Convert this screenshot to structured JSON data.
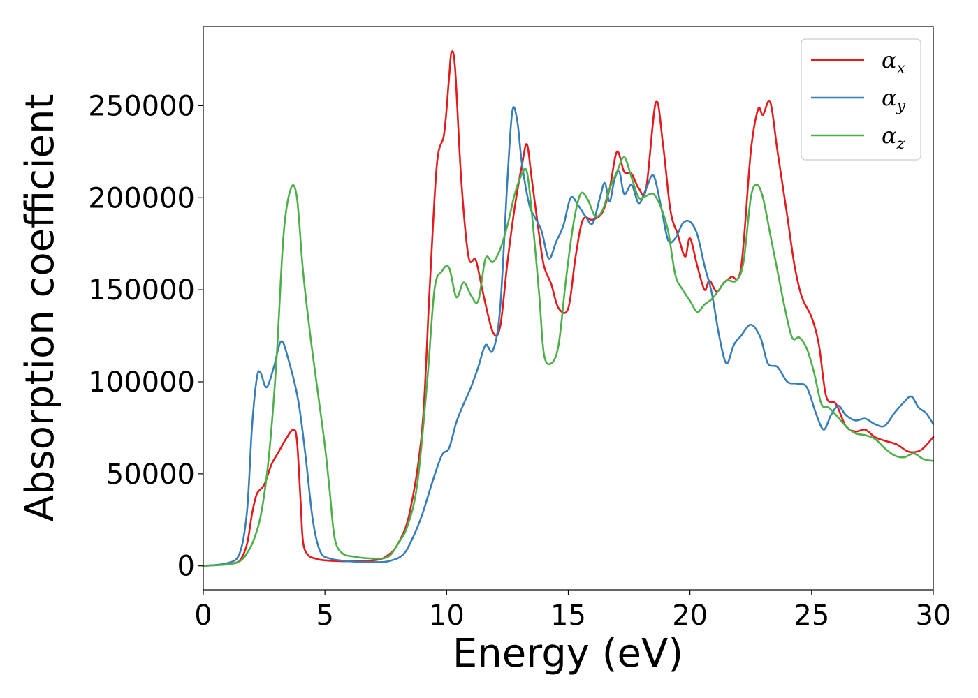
{
  "chart_data": {
    "type": "line",
    "title": "",
    "xlabel": "Energy (eV)",
    "ylabel": "Absorption coefficient",
    "xlim": [
      0,
      30
    ],
    "ylim": [
      -13000,
      293000
    ],
    "xticks": [
      0,
      5,
      10,
      15,
      20,
      25,
      30
    ],
    "xtick_labels": [
      "0",
      "5",
      "10",
      "15",
      "20",
      "25",
      "30"
    ],
    "yticks": [
      0,
      50000,
      100000,
      150000,
      200000,
      250000
    ],
    "ytick_labels": [
      "0",
      "50000",
      "100000",
      "150000",
      "200000",
      "250000"
    ],
    "grid": false,
    "legend_position": "top-right",
    "series": [
      {
        "name": "αx",
        "symbol": "α",
        "subscript": "x",
        "color": "#e41a1c",
        "points": [
          [
            0,
            0
          ],
          [
            1,
            1000
          ],
          [
            1.5,
            3000
          ],
          [
            1.8,
            12000
          ],
          [
            2.0,
            28000
          ],
          [
            2.2,
            39000
          ],
          [
            2.5,
            44000
          ],
          [
            2.8,
            55000
          ],
          [
            3.1,
            62000
          ],
          [
            3.4,
            69000
          ],
          [
            3.7,
            74000
          ],
          [
            3.85,
            68000
          ],
          [
            4.0,
            35000
          ],
          [
            4.1,
            13000
          ],
          [
            4.3,
            6000
          ],
          [
            4.6,
            4000
          ],
          [
            5,
            3000
          ],
          [
            6,
            2500
          ],
          [
            7,
            3000
          ],
          [
            7.5,
            5000
          ],
          [
            8,
            12000
          ],
          [
            8.5,
            30000
          ],
          [
            9,
            75000
          ],
          [
            9.3,
            150000
          ],
          [
            9.6,
            218000
          ],
          [
            9.9,
            235000
          ],
          [
            10.1,
            265000
          ],
          [
            10.2,
            279000
          ],
          [
            10.35,
            270000
          ],
          [
            10.6,
            210000
          ],
          [
            10.9,
            168000
          ],
          [
            11.2,
            166000
          ],
          [
            11.5,
            148000
          ],
          [
            11.9,
            127000
          ],
          [
            12.2,
            130000
          ],
          [
            12.5,
            165000
          ],
          [
            12.8,
            195000
          ],
          [
            13.1,
            218000
          ],
          [
            13.3,
            229000
          ],
          [
            13.5,
            210000
          ],
          [
            13.8,
            180000
          ],
          [
            14.0,
            163000
          ],
          [
            14.3,
            153000
          ],
          [
            14.6,
            140000
          ],
          [
            15.0,
            140000
          ],
          [
            15.3,
            168000
          ],
          [
            15.6,
            188000
          ],
          [
            16.0,
            188000
          ],
          [
            16.4,
            192000
          ],
          [
            16.7,
            205000
          ],
          [
            17.0,
            225000
          ],
          [
            17.3,
            214000
          ],
          [
            17.6,
            213000
          ],
          [
            17.9,
            205000
          ],
          [
            18.2,
            205000
          ],
          [
            18.6,
            252000
          ],
          [
            18.9,
            228000
          ],
          [
            19.2,
            193000
          ],
          [
            19.5,
            180000
          ],
          [
            19.8,
            168000
          ],
          [
            20.0,
            178000
          ],
          [
            20.3,
            163000
          ],
          [
            20.6,
            150000
          ],
          [
            20.8,
            155000
          ],
          [
            21.1,
            149000
          ],
          [
            21.4,
            154000
          ],
          [
            21.7,
            157000
          ],
          [
            22.1,
            162000
          ],
          [
            22.5,
            225000
          ],
          [
            22.8,
            248000
          ],
          [
            23.0,
            245000
          ],
          [
            23.3,
            252000
          ],
          [
            23.6,
            225000
          ],
          [
            24.0,
            190000
          ],
          [
            24.3,
            163000
          ],
          [
            24.6,
            146000
          ],
          [
            25.0,
            135000
          ],
          [
            25.3,
            120000
          ],
          [
            25.6,
            92000
          ],
          [
            26.0,
            88000
          ],
          [
            26.4,
            76000
          ],
          [
            26.8,
            73000
          ],
          [
            27.2,
            74000
          ],
          [
            27.6,
            70000
          ],
          [
            28.0,
            68000
          ],
          [
            28.5,
            66000
          ],
          [
            29.0,
            62000
          ],
          [
            29.5,
            63000
          ],
          [
            30,
            70000
          ]
        ]
      },
      {
        "name": "αy",
        "symbol": "α",
        "subscript": "y",
        "color": "#377eb8",
        "points": [
          [
            0,
            0
          ],
          [
            1,
            1500
          ],
          [
            1.5,
            7000
          ],
          [
            1.8,
            30000
          ],
          [
            2.0,
            75000
          ],
          [
            2.2,
            102000
          ],
          [
            2.35,
            105000
          ],
          [
            2.6,
            97000
          ],
          [
            2.9,
            108000
          ],
          [
            3.2,
            122000
          ],
          [
            3.5,
            112000
          ],
          [
            3.9,
            90000
          ],
          [
            4.2,
            60000
          ],
          [
            4.5,
            25000
          ],
          [
            4.8,
            8000
          ],
          [
            5.2,
            4000
          ],
          [
            6,
            2500
          ],
          [
            7,
            2000
          ],
          [
            7.6,
            2500
          ],
          [
            8.2,
            6000
          ],
          [
            8.6,
            15000
          ],
          [
            9.0,
            28000
          ],
          [
            9.4,
            45000
          ],
          [
            9.8,
            60000
          ],
          [
            10.1,
            64000
          ],
          [
            10.4,
            78000
          ],
          [
            10.7,
            88000
          ],
          [
            11.0,
            97000
          ],
          [
            11.3,
            108000
          ],
          [
            11.6,
            120000
          ],
          [
            11.9,
            117000
          ],
          [
            12.2,
            140000
          ],
          [
            12.5,
            210000
          ],
          [
            12.7,
            247000
          ],
          [
            12.9,
            242000
          ],
          [
            13.1,
            218000
          ],
          [
            13.4,
            196000
          ],
          [
            13.6,
            190000
          ],
          [
            13.9,
            182000
          ],
          [
            14.2,
            167000
          ],
          [
            14.5,
            176000
          ],
          [
            14.8,
            185000
          ],
          [
            15.1,
            200000
          ],
          [
            15.4,
            196000
          ],
          [
            15.7,
            190000
          ],
          [
            16.0,
            186000
          ],
          [
            16.3,
            200000
          ],
          [
            16.5,
            208000
          ],
          [
            16.7,
            198000
          ],
          [
            16.9,
            210000
          ],
          [
            17.1,
            214000
          ],
          [
            17.3,
            202000
          ],
          [
            17.6,
            207000
          ],
          [
            17.9,
            197000
          ],
          [
            18.2,
            205000
          ],
          [
            18.5,
            212000
          ],
          [
            18.8,
            196000
          ],
          [
            19.1,
            177000
          ],
          [
            19.4,
            178000
          ],
          [
            19.7,
            186000
          ],
          [
            20.0,
            187000
          ],
          [
            20.3,
            180000
          ],
          [
            20.6,
            163000
          ],
          [
            20.9,
            148000
          ],
          [
            21.2,
            125000
          ],
          [
            21.5,
            110000
          ],
          [
            21.8,
            120000
          ],
          [
            22.1,
            125000
          ],
          [
            22.5,
            131000
          ],
          [
            22.9,
            124000
          ],
          [
            23.2,
            110000
          ],
          [
            23.6,
            108000
          ],
          [
            24.0,
            100000
          ],
          [
            24.4,
            99000
          ],
          [
            24.8,
            97000
          ],
          [
            25.2,
            82000
          ],
          [
            25.5,
            74000
          ],
          [
            25.8,
            82000
          ],
          [
            26.1,
            87000
          ],
          [
            26.4,
            82000
          ],
          [
            26.8,
            79000
          ],
          [
            27.2,
            80000
          ],
          [
            27.6,
            77000
          ],
          [
            28.0,
            76000
          ],
          [
            28.4,
            83000
          ],
          [
            28.8,
            89000
          ],
          [
            29.1,
            92000
          ],
          [
            29.4,
            86000
          ],
          [
            29.7,
            83000
          ],
          [
            30,
            77000
          ]
        ]
      },
      {
        "name": "αz",
        "symbol": "α",
        "subscript": "z",
        "color": "#4daf4a",
        "points": [
          [
            0,
            0
          ],
          [
            1,
            800
          ],
          [
            1.5,
            2500
          ],
          [
            1.8,
            7000
          ],
          [
            2.1,
            15000
          ],
          [
            2.4,
            30000
          ],
          [
            2.7,
            60000
          ],
          [
            3.0,
            110000
          ],
          [
            3.3,
            180000
          ],
          [
            3.6,
            205000
          ],
          [
            3.85,
            200000
          ],
          [
            4.1,
            160000
          ],
          [
            4.4,
            125000
          ],
          [
            4.7,
            95000
          ],
          [
            5.0,
            65000
          ],
          [
            5.2,
            40000
          ],
          [
            5.4,
            15000
          ],
          [
            5.7,
            7000
          ],
          [
            6.2,
            5000
          ],
          [
            7,
            4000
          ],
          [
            7.6,
            5000
          ],
          [
            8.0,
            12000
          ],
          [
            8.4,
            22000
          ],
          [
            8.8,
            45000
          ],
          [
            9.2,
            100000
          ],
          [
            9.5,
            150000
          ],
          [
            9.8,
            160000
          ],
          [
            10.1,
            162000
          ],
          [
            10.4,
            146000
          ],
          [
            10.7,
            154000
          ],
          [
            11.0,
            147000
          ],
          [
            11.3,
            144000
          ],
          [
            11.6,
            167000
          ],
          [
            11.9,
            165000
          ],
          [
            12.2,
            172000
          ],
          [
            12.5,
            185000
          ],
          [
            12.8,
            202000
          ],
          [
            13.1,
            213000
          ],
          [
            13.3,
            214000
          ],
          [
            13.5,
            192000
          ],
          [
            13.8,
            148000
          ],
          [
            14.0,
            115000
          ],
          [
            14.3,
            110000
          ],
          [
            14.6,
            120000
          ],
          [
            14.9,
            155000
          ],
          [
            15.2,
            185000
          ],
          [
            15.5,
            202000
          ],
          [
            15.8,
            199000
          ],
          [
            16.1,
            190000
          ],
          [
            16.4,
            193000
          ],
          [
            16.7,
            205000
          ],
          [
            17.0,
            214000
          ],
          [
            17.3,
            222000
          ],
          [
            17.6,
            211000
          ],
          [
            17.9,
            200000
          ],
          [
            18.2,
            201000
          ],
          [
            18.5,
            202000
          ],
          [
            18.8,
            195000
          ],
          [
            19.1,
            182000
          ],
          [
            19.4,
            158000
          ],
          [
            19.7,
            150000
          ],
          [
            20.0,
            144000
          ],
          [
            20.3,
            138000
          ],
          [
            20.6,
            142000
          ],
          [
            20.9,
            145000
          ],
          [
            21.2,
            150000
          ],
          [
            21.5,
            155000
          ],
          [
            21.9,
            155000
          ],
          [
            22.2,
            165000
          ],
          [
            22.5,
            200000
          ],
          [
            22.75,
            207000
          ],
          [
            23.0,
            200000
          ],
          [
            23.3,
            180000
          ],
          [
            23.6,
            160000
          ],
          [
            23.9,
            140000
          ],
          [
            24.2,
            124000
          ],
          [
            24.5,
            124000
          ],
          [
            24.8,
            118000
          ],
          [
            25.1,
            105000
          ],
          [
            25.4,
            88000
          ],
          [
            25.7,
            86000
          ],
          [
            26.0,
            82000
          ],
          [
            26.4,
            76000
          ],
          [
            26.8,
            72000
          ],
          [
            27.2,
            71000
          ],
          [
            27.6,
            69000
          ],
          [
            28.0,
            64000
          ],
          [
            28.4,
            60000
          ],
          [
            28.8,
            59000
          ],
          [
            29.2,
            61000
          ],
          [
            29.6,
            58000
          ],
          [
            30,
            57000
          ]
        ]
      }
    ]
  }
}
